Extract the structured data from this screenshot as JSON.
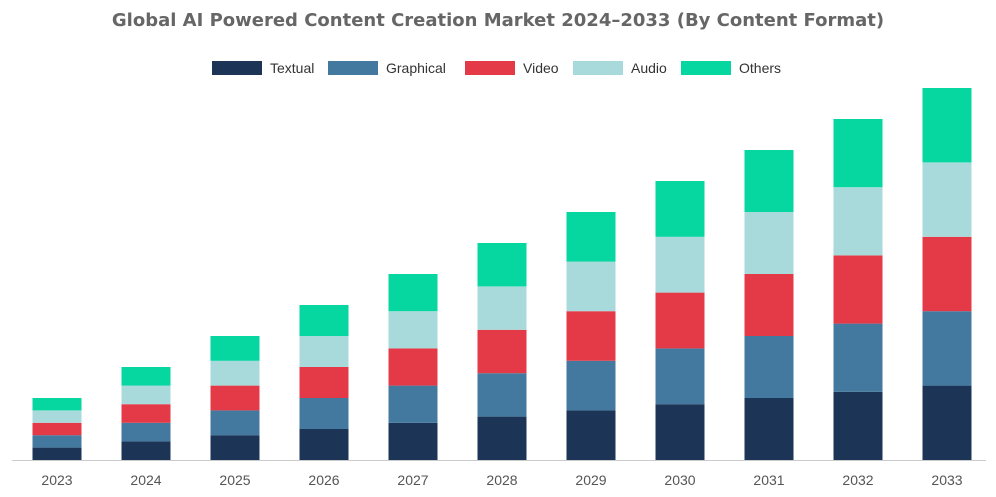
{
  "chart_data": {
    "type": "bar",
    "stacked": true,
    "title": "Global AI Powered Content Creation Market 2024–2033 (By Content Format)",
    "xlabel": "",
    "ylabel": "",
    "categories": [
      "2023",
      "2024",
      "2025",
      "2026",
      "2027",
      "2028",
      "2029",
      "2030",
      "2031",
      "2032",
      "2033"
    ],
    "series": [
      {
        "name": "Textual",
        "color": "#1c3557",
        "values": [
          1,
          1.5,
          2,
          2.5,
          3,
          3.5,
          4,
          4.5,
          5,
          5.5,
          6
        ]
      },
      {
        "name": "Graphical",
        "color": "#43799e",
        "values": [
          1,
          1.5,
          2,
          2.5,
          3,
          3.5,
          4,
          4.5,
          5,
          5.5,
          6
        ]
      },
      {
        "name": "Video",
        "color": "#e43a47",
        "values": [
          1,
          1.5,
          2,
          2.5,
          3,
          3.5,
          4,
          4.5,
          5,
          5.5,
          6
        ]
      },
      {
        "name": "Audio",
        "color": "#a9dadb",
        "values": [
          1,
          1.5,
          2,
          2.5,
          3,
          3.5,
          4,
          4.5,
          5,
          5.5,
          6
        ]
      },
      {
        "name": "Others",
        "color": "#06d69f",
        "values": [
          1,
          1.5,
          2,
          2.5,
          3,
          3.5,
          4,
          4.5,
          5,
          5.5,
          6
        ]
      }
    ],
    "ylim": [
      0,
      30
    ],
    "grid": false,
    "legend": "top-center",
    "axis_color": "#cccccc",
    "tick_label_color": "#555555"
  }
}
